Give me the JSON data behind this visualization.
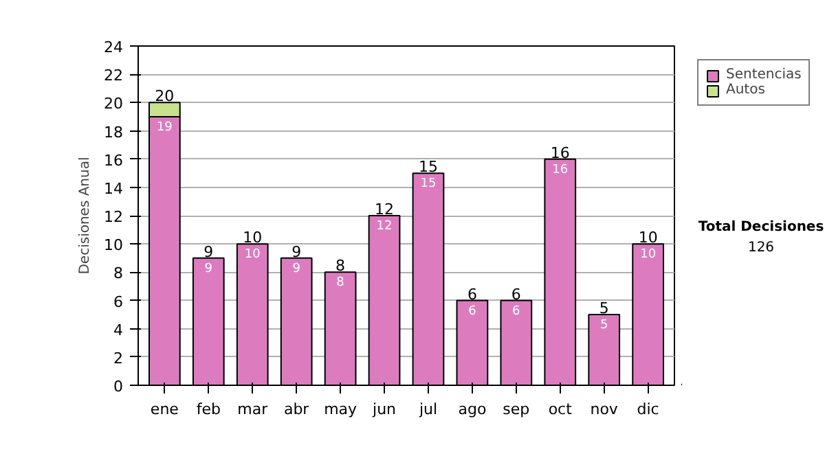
{
  "chart_data": {
    "type": "bar",
    "stacked": true,
    "ylabel": "Decisiones Anual",
    "categories": [
      "ene",
      "feb",
      "mar",
      "abr",
      "may",
      "jun",
      "jul",
      "ago",
      "sep",
      "oct",
      "nov",
      "dic"
    ],
    "series": [
      {
        "name": "Sentencias",
        "color": "#dc7cbf",
        "values": [
          19,
          9,
          10,
          9,
          8,
          12,
          15,
          6,
          6,
          16,
          5,
          10
        ],
        "value_labels": [
          "19",
          "9",
          "10",
          "9",
          "8",
          "12",
          "15",
          "6",
          "6",
          "16",
          "5",
          "10"
        ]
      },
      {
        "name": "Autos",
        "color": "#c9e28f",
        "values": [
          1,
          0,
          0,
          0,
          0,
          0,
          0,
          0,
          0,
          0,
          0,
          0
        ]
      }
    ],
    "totals": [
      "20",
      "9",
      "10",
      "9",
      "8",
      "12",
      "15",
      "6",
      "6",
      "16",
      "5",
      "10"
    ],
    "ylim": [
      0,
      24
    ],
    "yticks": [
      0,
      2,
      4,
      6,
      8,
      10,
      12,
      14,
      16,
      18,
      20,
      22,
      24
    ],
    "grid": "y",
    "legend": "right",
    "annotations": [
      "Total Decisiones",
      "126"
    ]
  }
}
